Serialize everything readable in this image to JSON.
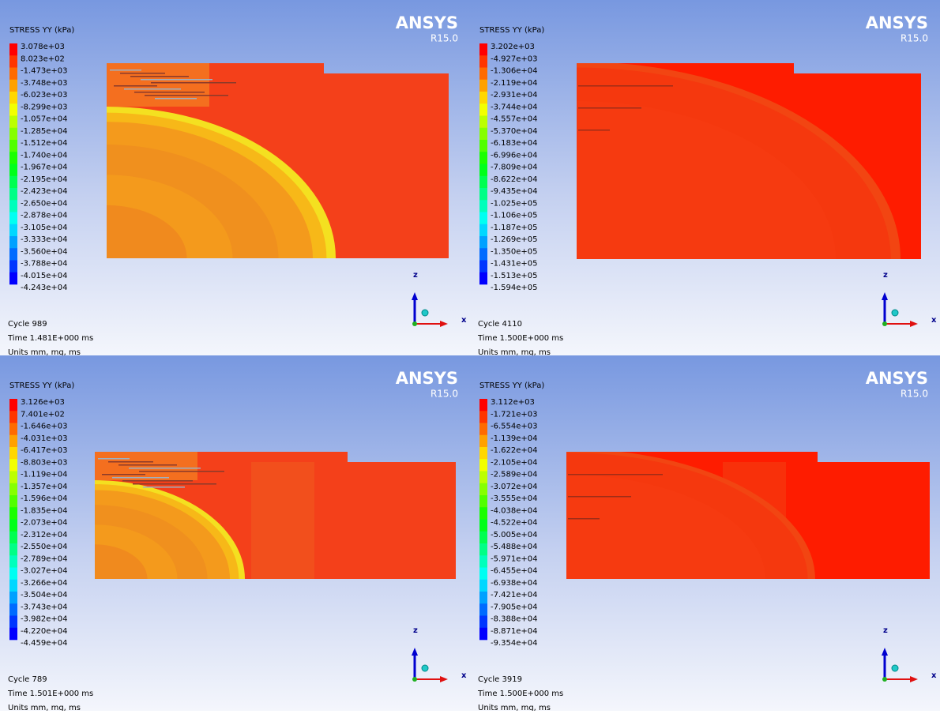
{
  "panels": [
    {
      "legend_title": "STRESS YY (kPa)",
      "brand": "ANSYS",
      "version": "R15.0",
      "axis_z": "z",
      "axis_x": "x",
      "legend_labels": [
        "3.078e+03",
        "8.023e+02",
        "-1.473e+03",
        "-3.748e+03",
        "-6.023e+03",
        "-8.299e+03",
        "-1.057e+04",
        "-1.285e+04",
        "-1.512e+04",
        "-1.740e+04",
        "-1.967e+04",
        "-2.195e+04",
        "-2.423e+04",
        "-2.650e+04",
        "-2.878e+04",
        "-3.105e+04",
        "-3.333e+04",
        "-3.560e+04",
        "-3.788e+04",
        "-4.015e+04",
        "-4.243e+04"
      ],
      "cycle": "Cycle 989",
      "time": "Time 1.481E+000 ms",
      "units": "Units mm, mg, ms"
    },
    {
      "legend_title": "STRESS YY (kPa)",
      "brand": "ANSYS",
      "version": "R15.0",
      "axis_z": "z",
      "axis_x": "x",
      "legend_labels": [
        "3.202e+03",
        "-4.927e+03",
        "-1.306e+04",
        "-2.119e+04",
        "-2.931e+04",
        "-3.744e+04",
        "-4.557e+04",
        "-5.370e+04",
        "-6.183e+04",
        "-6.996e+04",
        "-7.809e+04",
        "-8.622e+04",
        "-9.435e+04",
        "-1.025e+05",
        "-1.106e+05",
        "-1.187e+05",
        "-1.269e+05",
        "-1.350e+05",
        "-1.431e+05",
        "-1.513e+05",
        "-1.594e+05"
      ],
      "cycle": "Cycle 4110",
      "time": "Time 1.500E+000 ms",
      "units": "Units mm, mg, ms"
    },
    {
      "legend_title": "STRESS YY (kPa)",
      "brand": "ANSYS",
      "version": "R15.0",
      "axis_z": "z",
      "axis_x": "x",
      "legend_labels": [
        "3.126e+03",
        "7.401e+02",
        "-1.646e+03",
        "-4.031e+03",
        "-6.417e+03",
        "-8.803e+03",
        "-1.119e+04",
        "-1.357e+04",
        "-1.596e+04",
        "-1.835e+04",
        "-2.073e+04",
        "-2.312e+04",
        "-2.550e+04",
        "-2.789e+04",
        "-3.027e+04",
        "-3.266e+04",
        "-3.504e+04",
        "-3.743e+04",
        "-3.982e+04",
        "-4.220e+04",
        "-4.459e+04"
      ],
      "cycle": "Cycle 789",
      "time": "Time 1.501E+000 ms",
      "units": "Units mm, mg, ms"
    },
    {
      "legend_title": "STRESS YY (kPa)",
      "brand": "ANSYS",
      "version": "R15.0",
      "axis_z": "z",
      "axis_x": "x",
      "legend_labels": [
        "3.112e+03",
        "-1.721e+03",
        "-6.554e+03",
        "-1.139e+04",
        "-1.622e+04",
        "-2.105e+04",
        "-2.589e+04",
        "-3.072e+04",
        "-3.555e+04",
        "-4.038e+04",
        "-4.522e+04",
        "-5.005e+04",
        "-5.488e+04",
        "-5.971e+04",
        "-6.455e+04",
        "-6.938e+04",
        "-7.421e+04",
        "-7.905e+04",
        "-8.388e+04",
        "-8.871e+04",
        "-9.354e+04"
      ],
      "cycle": "Cycle 3919",
      "time": "Time 1.500E+000 ms",
      "units": "Units mm, mg, ms"
    }
  ]
}
